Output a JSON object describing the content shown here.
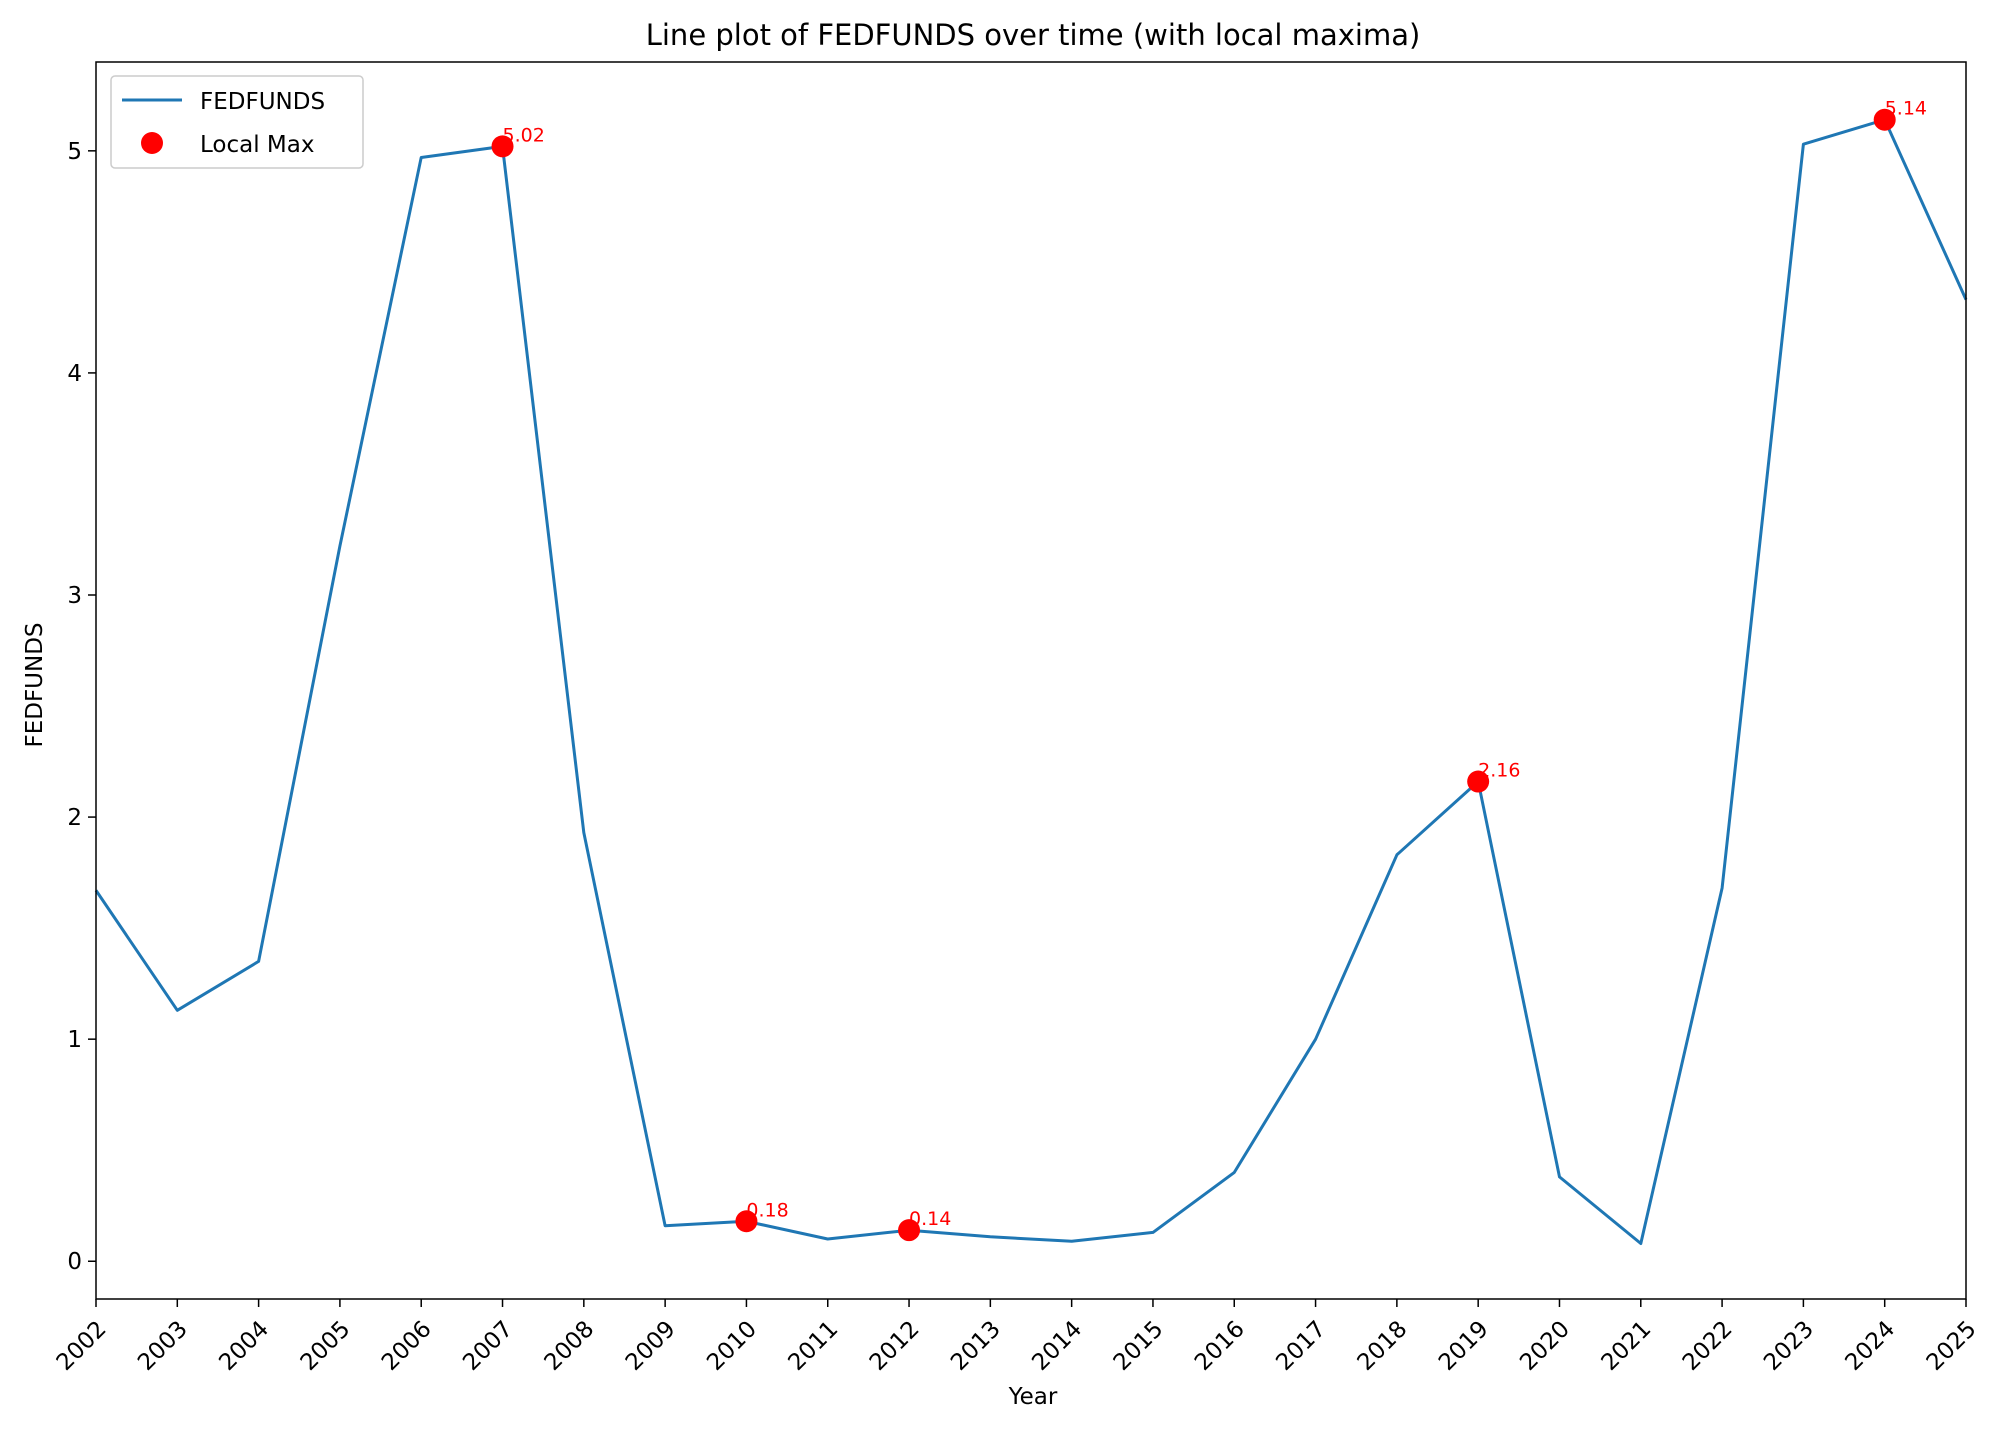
{
  "chart_data": {
    "type": "line",
    "title": "Line plot of FEDFUNDS over time (with local maxima)",
    "xlabel": "Year",
    "ylabel": "FEDFUNDS",
    "x": [
      "2002",
      "2003",
      "2004",
      "2005",
      "2006",
      "2007",
      "2008",
      "2009",
      "2010",
      "2011",
      "2012",
      "2013",
      "2014",
      "2015",
      "2016",
      "2017",
      "2018",
      "2019",
      "2020",
      "2021",
      "2022",
      "2023",
      "2024",
      "2025"
    ],
    "series": [
      {
        "name": "FEDFUNDS",
        "color": "#1f77b4",
        "values": [
          1.67,
          1.13,
          1.35,
          3.22,
          4.97,
          5.02,
          1.93,
          0.16,
          0.18,
          0.1,
          0.14,
          0.11,
          0.09,
          0.13,
          0.4,
          1.0,
          1.83,
          2.16,
          0.38,
          0.08,
          1.68,
          5.03,
          5.14,
          4.33
        ]
      }
    ],
    "local_max": {
      "name": "Local Max",
      "color": "#ff0000",
      "x": [
        "2007",
        "2010",
        "2012",
        "2019",
        "2024"
      ],
      "values": [
        5.02,
        0.18,
        0.14,
        2.16,
        5.14
      ],
      "labels": [
        "5.02",
        "0.18",
        "0.14",
        "2.16",
        "5.14"
      ]
    },
    "ylim": [
      -0.17,
      5.4
    ],
    "yticks": [
      0,
      1,
      2,
      3,
      4,
      5
    ],
    "legend_position": "upper left",
    "grid": false
  }
}
